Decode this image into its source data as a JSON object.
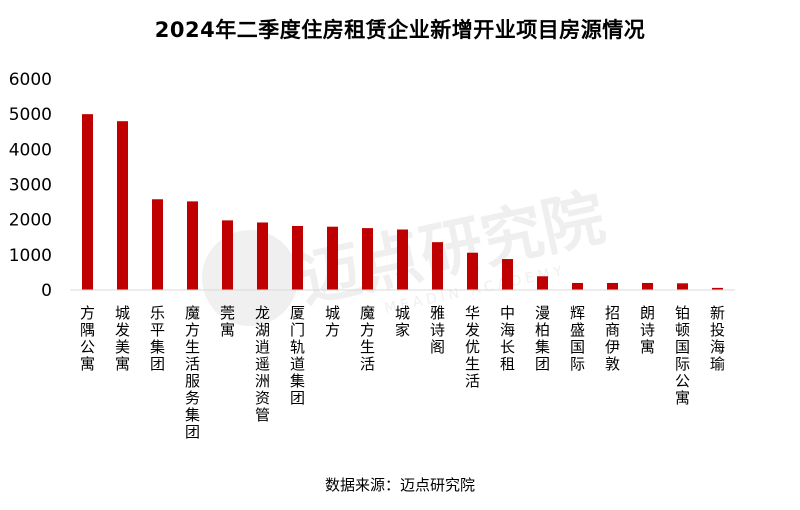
{
  "title": "2024年二季度住房租赁企业新增开业项目房源情况",
  "source": "数据来源：迈点研究院",
  "watermark": {
    "brand": "迈点研究院",
    "sub": "MEADIN ACADEMY"
  },
  "colors": {
    "bar": "#c00000",
    "axis": "#d9d9d9"
  },
  "chart_data": {
    "type": "bar",
    "categories": [
      "方隅公寓",
      "城发美寓",
      "乐平集团",
      "魔方生活服务集团",
      "莞寓",
      "龙湖逍遥洲资管",
      "厦门轨道集团",
      "城方",
      "魔方生活",
      "城家",
      "雅诗阁",
      "华发优生活",
      "中海长租",
      "漫柏集团",
      "辉盛国际",
      "招商伊敦",
      "朗诗寓",
      "铂顿国际公寓",
      "新投海瑜"
    ],
    "values": [
      5000,
      4800,
      2580,
      2520,
      1980,
      1920,
      1820,
      1800,
      1760,
      1720,
      1360,
      1060,
      880,
      390,
      200,
      200,
      200,
      190,
      60
    ],
    "ylim": [
      0,
      6000
    ],
    "yticks": [
      "0",
      "1000",
      "2000",
      "3000",
      "4000",
      "5000",
      "6000"
    ],
    "grid": false,
    "legend": "none"
  }
}
